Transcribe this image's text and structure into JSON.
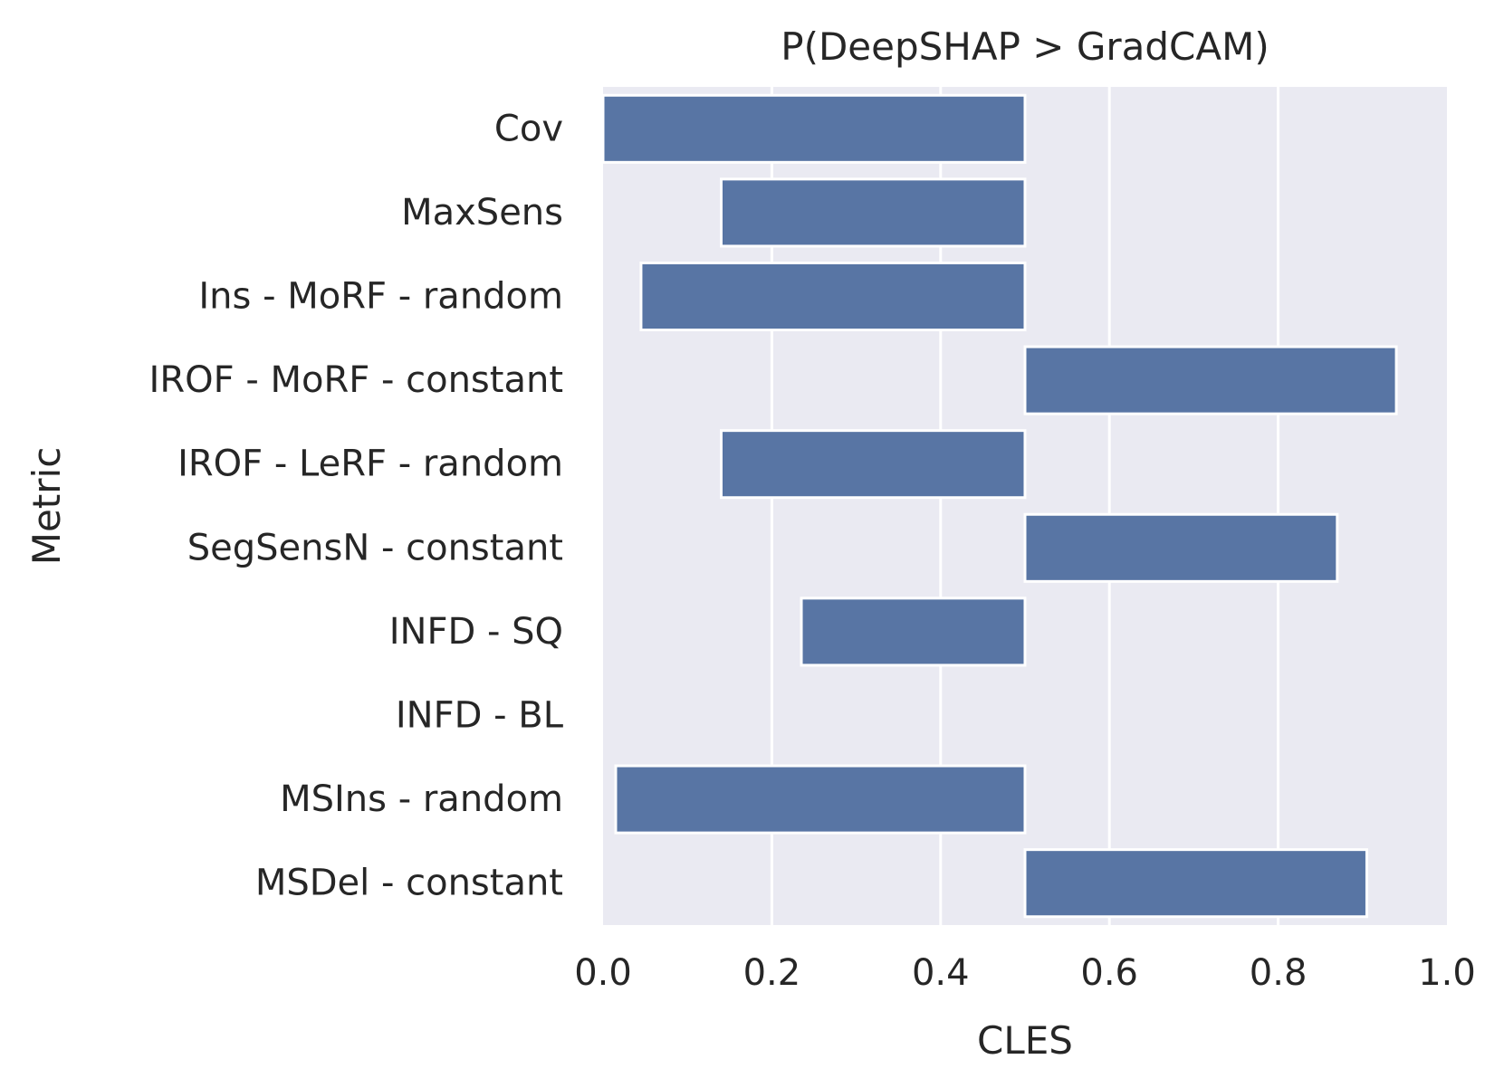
{
  "chart_data": {
    "type": "bar",
    "orientation": "horizontal",
    "title": "P(DeepSHAP > GradCAM)",
    "xlabel": "CLES",
    "ylabel": "Metric",
    "xlim": [
      0.0,
      1.0
    ],
    "xticks": [
      "0.0",
      "0.2",
      "0.4",
      "0.6",
      "0.8",
      "1.0"
    ],
    "baseline": 0.5,
    "bar_color": "#5875a4",
    "background_color": "#eaeaf2",
    "grid": true,
    "categories": [
      "Cov",
      "MaxSens",
      "Ins - MoRF - random",
      "IROF - MoRF - constant",
      "IROF - LeRF - random",
      "SegSensN - constant",
      "INFD - SQ",
      "INFD - BL",
      "MSIns - random",
      "MSDel - constant"
    ],
    "values": [
      0.0,
      0.14,
      0.045,
      0.94,
      0.14,
      0.87,
      0.235,
      0.5,
      0.015,
      0.905
    ]
  }
}
